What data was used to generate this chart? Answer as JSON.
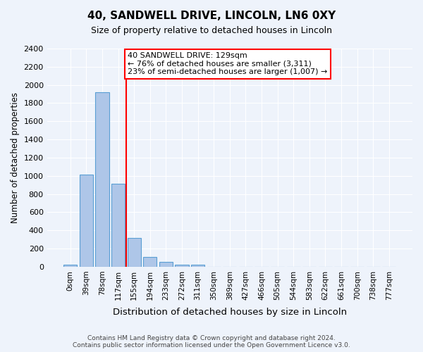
{
  "title1": "40, SANDWELL DRIVE, LINCOLN, LN6 0XY",
  "title2": "Size of property relative to detached houses in Lincoln",
  "xlabel": "Distribution of detached houses by size in Lincoln",
  "ylabel": "Number of detached properties",
  "bin_labels": [
    "0sqm",
    "39sqm",
    "78sqm",
    "117sqm",
    "155sqm",
    "194sqm",
    "233sqm",
    "272sqm",
    "311sqm",
    "350sqm",
    "389sqm",
    "427sqm",
    "466sqm",
    "505sqm",
    "544sqm",
    "583sqm",
    "622sqm",
    "661sqm",
    "700sqm",
    "738sqm",
    "777sqm"
  ],
  "bin_values": [
    20,
    1010,
    1920,
    910,
    320,
    110,
    50,
    25,
    25,
    0,
    0,
    0,
    0,
    0,
    0,
    0,
    0,
    0,
    0,
    0,
    0
  ],
  "bar_color": "#aec6e8",
  "bar_edge_color": "#5a9fd4",
  "vline_x": 3.5,
  "vline_color": "red",
  "annotation_text": "40 SANDWELL DRIVE: 129sqm\n← 76% of detached houses are smaller (3,311)\n23% of semi-detached houses are larger (1,007) →",
  "annotation_box_color": "white",
  "annotation_box_edge_color": "red",
  "ylim": [
    0,
    2400
  ],
  "yticks": [
    0,
    200,
    400,
    600,
    800,
    1000,
    1200,
    1400,
    1600,
    1800,
    2000,
    2200,
    2400
  ],
  "footer_line1": "Contains HM Land Registry data © Crown copyright and database right 2024.",
  "footer_line2": "Contains public sector information licensed under the Open Government Licence v3.0.",
  "background_color": "#eef3fb",
  "grid_color": "#ffffff"
}
